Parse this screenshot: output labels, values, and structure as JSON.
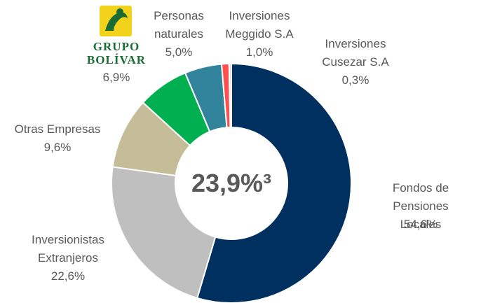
{
  "chart_data": {
    "type": "pie",
    "categories": [
      "Fondos de Pensiones\nLocales",
      "Inversionistas\nExtranjeros",
      "Otras Empresas",
      "GRUPO\nBOLÍVAR",
      "Personas\nnaturales",
      "Inversiones\nMeggido S.A",
      "Inversiones\nCusezar S.A"
    ],
    "values": [
      54.6,
      22.6,
      9.6,
      6.9,
      5.0,
      1.0,
      0.3
    ],
    "value_labels": [
      "54,6%",
      "22,6%",
      "9,6%",
      "6,9%",
      "5,0%",
      "1,0%",
      "0,3%"
    ],
    "colors": [
      "#003060",
      "#bfbfbf",
      "#c4bd97",
      "#00b050",
      "#31849b",
      "#ff5050",
      "#d9d9d9"
    ],
    "donut": true,
    "annotations": [
      "23,9%³"
    ]
  }
}
